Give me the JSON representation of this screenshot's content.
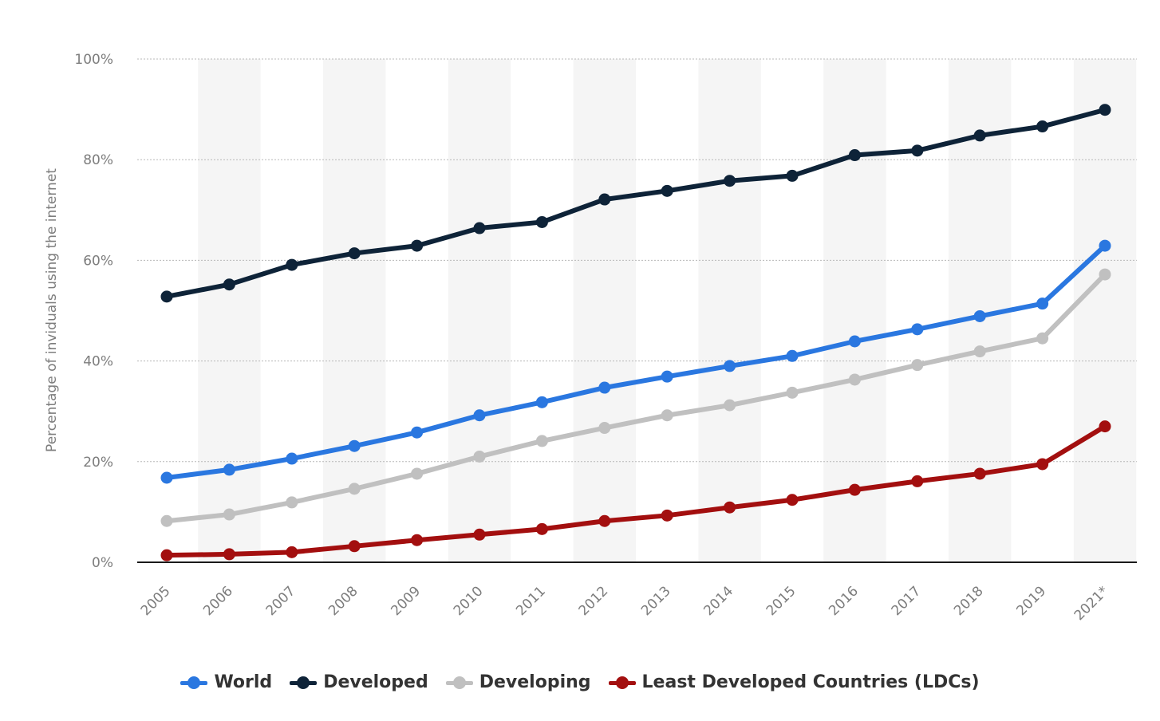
{
  "chart_data": {
    "type": "line",
    "categories": [
      "2005",
      "2006",
      "2007",
      "2008",
      "2009",
      "2010",
      "2011",
      "2012",
      "2013",
      "2014",
      "2015",
      "2016",
      "2017",
      "2018",
      "2019",
      "2021*"
    ],
    "ylabel": "Percentage of inviduals using the internet",
    "ylim": [
      0,
      100
    ],
    "yticks": [
      0,
      20,
      40,
      60,
      80,
      100
    ],
    "ytick_labels": [
      "0%",
      "20%",
      "40%",
      "60%",
      "80%",
      "100%"
    ],
    "grid": true,
    "legend_position": "bottom",
    "series": [
      {
        "name": "World",
        "color": "#2a77e0",
        "values": [
          16.8,
          18.4,
          20.6,
          23.1,
          25.8,
          29.2,
          31.8,
          34.7,
          36.9,
          39.0,
          41.0,
          43.9,
          46.3,
          48.9,
          51.4,
          62.9
        ]
      },
      {
        "name": "Developed",
        "color": "#0e2338",
        "values": [
          52.8,
          55.2,
          59.1,
          61.4,
          62.9,
          66.4,
          67.6,
          72.1,
          73.8,
          75.8,
          76.8,
          80.9,
          81.8,
          84.8,
          86.6,
          89.9
        ]
      },
      {
        "name": "Developing",
        "color": "#c0c0c0",
        "values": [
          8.2,
          9.5,
          11.9,
          14.6,
          17.6,
          21.0,
          24.1,
          26.7,
          29.2,
          31.2,
          33.7,
          36.3,
          39.2,
          41.9,
          44.5,
          57.2
        ]
      },
      {
        "name": "Least Developed Countries (LDCs)",
        "color": "#a30f0f",
        "values": [
          1.4,
          1.6,
          2.0,
          3.2,
          4.4,
          5.5,
          6.6,
          8.2,
          9.3,
          10.9,
          12.4,
          14.4,
          16.1,
          17.6,
          19.5,
          27.0
        ]
      }
    ]
  }
}
